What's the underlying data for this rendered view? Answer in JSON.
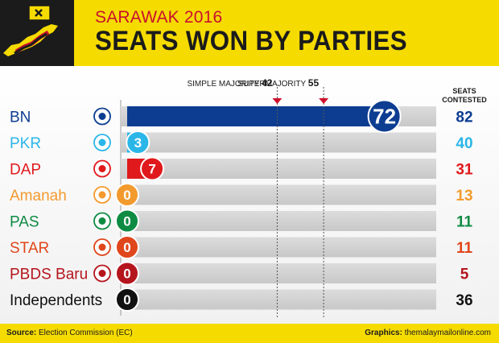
{
  "header": {
    "supertitle": "SARAWAK 2016",
    "title": "SEATS WON BY PARTIES"
  },
  "footer": {
    "source_label": "Source:",
    "source_value": "Election Commission (EC)",
    "credit_label": "Graphics:",
    "credit_value": "themalaymailonline.com"
  },
  "chart_data": {
    "type": "bar",
    "orientation": "horizontal",
    "title": "SEATS WON BY PARTIES",
    "subtitle": "SARAWAK 2016",
    "categories": [
      "BN",
      "PKR",
      "DAP",
      "Amanah",
      "PAS",
      "STAR",
      "PBDS Baru",
      "Independents"
    ],
    "series": [
      {
        "values": [
          72,
          3,
          7,
          0,
          0,
          0,
          0,
          0
        ]
      }
    ],
    "seats_contested_header": "SEATS\nCONTESTED",
    "seats_contested": [
      82,
      40,
      31,
      13,
      11,
      11,
      5,
      36
    ],
    "reference_lines": [
      {
        "label": "SIMPLE MAJORITY",
        "value": 42
      },
      {
        "label": "SUPERMAJORITY",
        "value": 55
      }
    ],
    "xlim": [
      0,
      82
    ],
    "colors": [
      "#0d3d91",
      "#2bb6e8",
      "#e0191c",
      "#f39a2e",
      "#0e8b43",
      "#e0461c",
      "#b5151d",
      "#111111"
    ],
    "icons": [
      "scales-icon",
      "eye-icon",
      "rocket-icon",
      "triangle-logo-icon",
      "ring-icon",
      "seal-icon",
      "emblem-icon",
      ""
    ],
    "grid": false
  }
}
